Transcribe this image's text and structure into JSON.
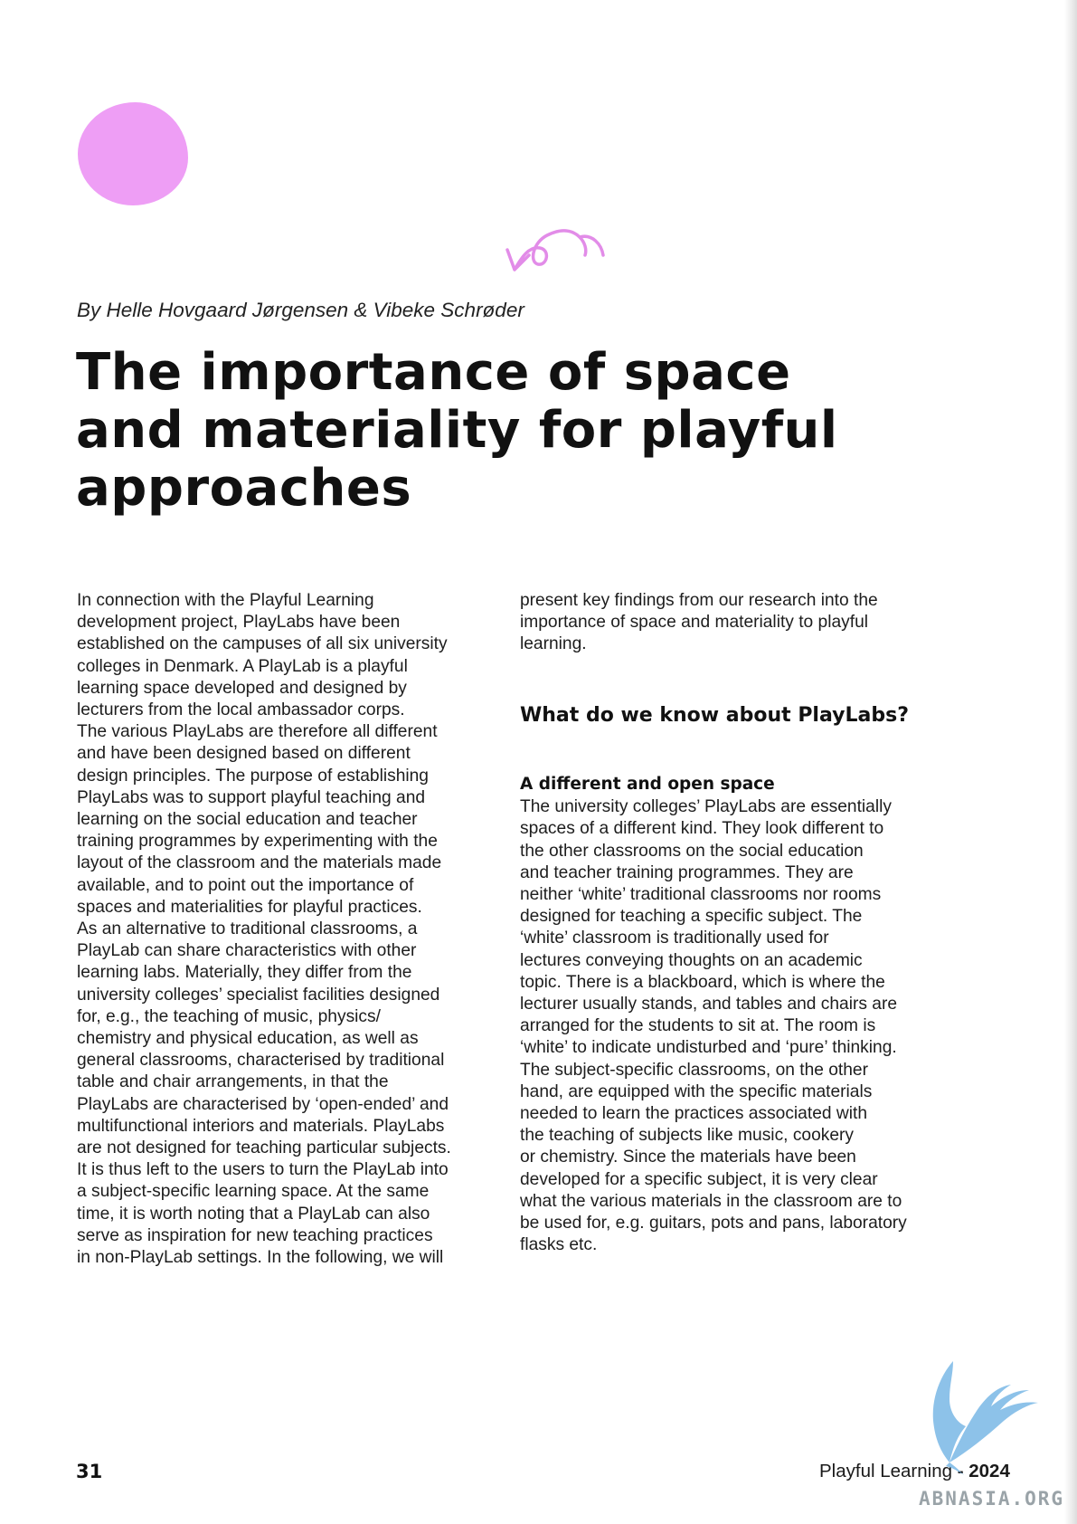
{
  "colors": {
    "blob": "#ee9ef5",
    "squiggle": "#e28ce8",
    "watermark_bird": "#7ab8e6",
    "watermark_text": "#9aa3a8"
  },
  "decorations": {
    "blob": "pink-circle",
    "squiggle": "hand-drawn-arrow-icon",
    "watermark_mark": "bird-logo-icon"
  },
  "byline": "By Helle Hovgaard Jørgensen & Vibeke Schrøder",
  "title_lines": [
    "The importance of space",
    "and materiality for playful",
    "approaches"
  ],
  "left_column_lines": [
    "In connection with the Playful Learning",
    "development project, PlayLabs have been",
    "established on the campuses of all six university",
    "colleges in Denmark. A PlayLab is a playful",
    "learning space developed and designed by",
    "lecturers from the local ambassador corps.",
    "The various PlayLabs are therefore all different",
    "and have been designed based on different",
    "design principles. The purpose of establishing",
    "PlayLabs was to support playful teaching and",
    "learning on the social education and teacher",
    "training programmes by experimenting with the",
    "layout of the classroom and the materials made",
    "available, and to point out the importance of",
    "spaces and materialities for playful practices.",
    "As an alternative to traditional classrooms, a",
    "PlayLab can share characteristics with other",
    "learning labs. Materially, they differ from the",
    "university colleges’ specialist facilities designed",
    "for, e.g., the teaching of music, physics/",
    "chemistry and physical education, as well as",
    "general classrooms, characterised by traditional",
    "table and chair arrangements, in that the",
    "PlayLabs are characterised by ‘open-ended’ and",
    "multifunctional interiors and materials. PlayLabs",
    "are not designed for teaching particular subjects.",
    "It is thus left to the users to turn the PlayLab into",
    "a subject-specific learning space. At the same",
    "time, it is worth noting that a PlayLab can also",
    "serve as inspiration for new teaching practices",
    "in non-PlayLab settings. In the following, we will"
  ],
  "right_column_intro_lines": [
    "present key findings from our research into the",
    "importance of space and materiality to playful",
    "learning."
  ],
  "section_heading": "What do we know about PlayLabs?",
  "subheading": "A different and open space",
  "right_column_body_lines": [
    "The university colleges’ PlayLabs are essentially",
    "spaces of a different kind. They look different to",
    "the other classrooms on the social education",
    "and teacher training programmes. They are",
    "neither ‘white’ traditional classrooms nor rooms",
    "designed for teaching a specific subject. The",
    "‘white’ classroom is traditionally used for",
    "lectures conveying thoughts on an academic",
    "topic. There is a blackboard, which is where the",
    "lecturer usually stands, and tables and chairs are",
    "arranged for the students to sit at. The room is",
    "‘white’ to indicate undisturbed and ‘pure’ thinking.",
    "The subject-specific classrooms, on the other",
    "hand, are equipped with the specific materials",
    "needed to learn the practices associated with",
    "the teaching of subjects like music, cookery",
    "or chemistry. Since the materials have been",
    "developed for a specific subject, it is very clear",
    "what the various materials in the classroom are to",
    "be used for, e.g. guitars, pots and pans, laboratory",
    "flasks etc."
  ],
  "footer": {
    "page_number": "31",
    "publication": "Playful Learning",
    "separator": " - ",
    "year": "2024",
    "watermark": "ABNASIA.ORG"
  }
}
